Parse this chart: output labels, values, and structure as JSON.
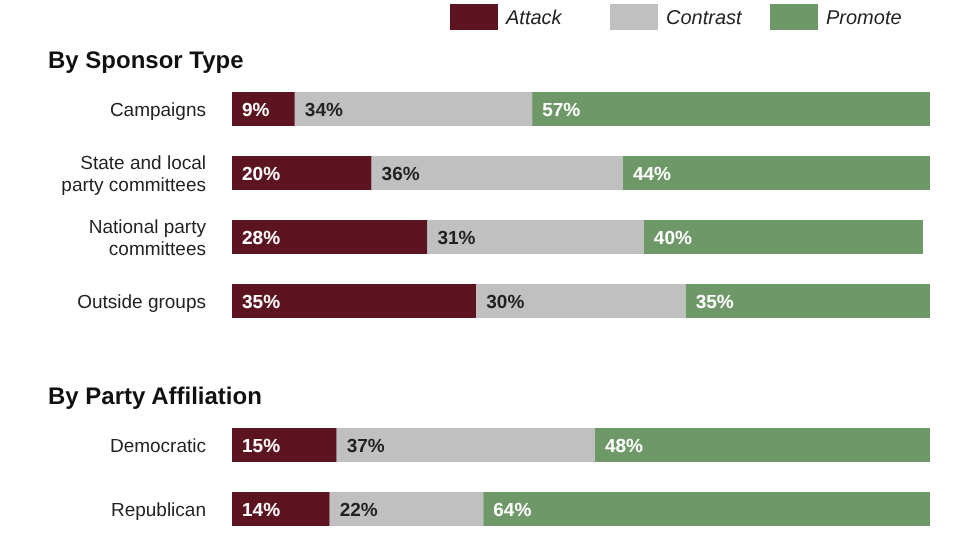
{
  "chart_data": [
    {
      "type": "bar",
      "title": "By Sponsor Type",
      "orientation": "horizontal",
      "stacked": true,
      "legend": "top right",
      "categories": [
        "Campaigns",
        "State and local party committees",
        "National party committees",
        "Outside groups"
      ],
      "series": [
        {
          "name": "Attack",
          "color": "#5c1520",
          "values": [
            9,
            20,
            28,
            35
          ],
          "value_labels": [
            "9%",
            "20%",
            "28%",
            "35%"
          ]
        },
        {
          "name": "Contrast",
          "color": "#c0c0c0",
          "values": [
            34,
            36,
            31,
            30
          ],
          "value_labels": [
            "34%",
            "36%",
            "31%",
            "30%"
          ]
        },
        {
          "name": "Promote",
          "color": "#6f9868",
          "values": [
            57,
            44,
            40,
            35
          ],
          "value_labels": [
            "57%",
            "44%",
            "40%",
            "35%"
          ]
        }
      ]
    },
    {
      "type": "bar",
      "title": "By Party Affiliation",
      "orientation": "horizontal",
      "stacked": true,
      "categories": [
        "Democratic",
        "Republican"
      ],
      "series": [
        {
          "color": "#5c1520",
          "values": [
            15,
            14
          ],
          "value_labels": [
            "15%",
            "14%"
          ]
        },
        {
          "color": "#c0c0c0",
          "values": [
            37,
            22
          ],
          "value_labels": [
            "37%",
            "22%"
          ]
        },
        {
          "color": "#6f9868",
          "values": [
            48,
            64
          ],
          "value_labels": [
            "48%",
            "64%"
          ]
        }
      ]
    }
  ]
}
